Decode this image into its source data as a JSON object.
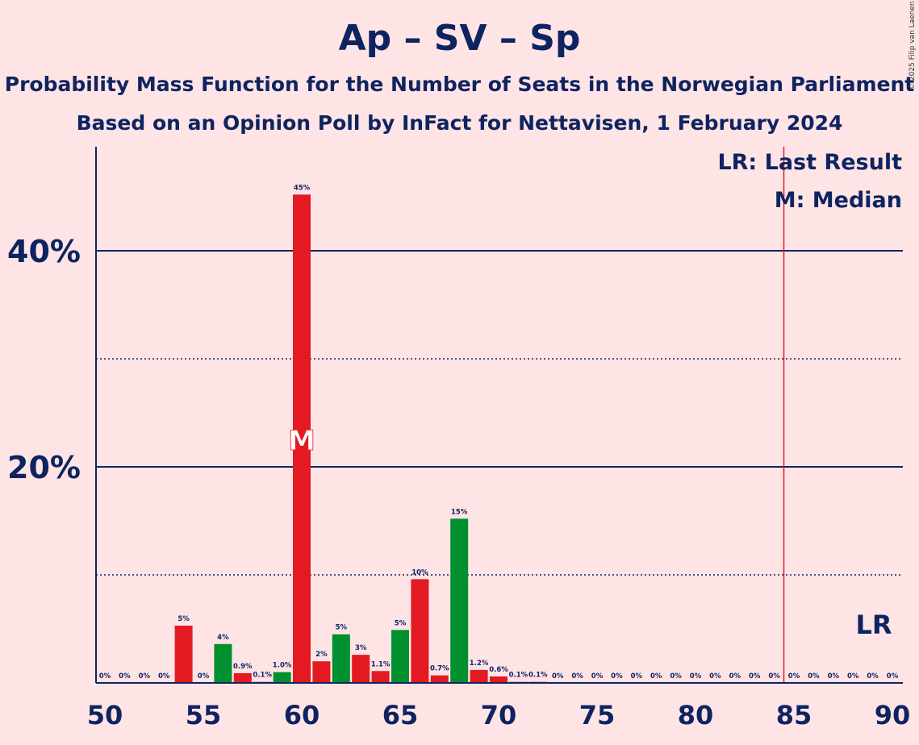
{
  "title": "Ap – SV – Sp",
  "subtitle_1": "Probability Mass Function for the Number of Seats in the Norwegian Parliament",
  "subtitle_2": "Based on an Opinion Poll by InFact for Nettavisen, 1 February 2024",
  "copyright": "© 2025 Filip van Laenen",
  "legend": {
    "last_result": "LR: Last Result",
    "median": "M: Median"
  },
  "colors": {
    "background": "#FFE4E6",
    "text": "#0E2460",
    "bar_red": "#E31A22",
    "bar_green": "#009030",
    "last_result_line": "#E31A22"
  },
  "chart_data": {
    "type": "bar",
    "xlim": [
      50,
      90
    ],
    "ylim": [
      0,
      50
    ],
    "x_ticks": [
      50,
      55,
      60,
      65,
      70,
      75,
      80,
      85,
      90
    ],
    "x_tick_labels": [
      "50",
      "55",
      "60",
      "65",
      "70",
      "75",
      "80",
      "85",
      "90"
    ],
    "y_major_ticks": [
      20,
      40
    ],
    "y_major_labels": [
      "20%",
      "40%"
    ],
    "y_minor_ticks": [
      10,
      30
    ],
    "median": 60,
    "median_label": "M",
    "last_result": 85,
    "last_result_label": "LR",
    "bars": [
      {
        "x": 50,
        "value": 0,
        "label": "0%",
        "color": "red"
      },
      {
        "x": 51,
        "value": 0,
        "label": "0%",
        "color": "red"
      },
      {
        "x": 52,
        "value": 0,
        "label": "0%",
        "color": "red"
      },
      {
        "x": 53,
        "value": 0,
        "label": "0%",
        "color": "red"
      },
      {
        "x": 54,
        "value": 5.3,
        "label": "5%",
        "color": "red"
      },
      {
        "x": 55,
        "value": 0,
        "label": "0%",
        "color": "red"
      },
      {
        "x": 56,
        "value": 3.6,
        "label": "4%",
        "color": "green"
      },
      {
        "x": 57,
        "value": 0.9,
        "label": "0.9%",
        "color": "red"
      },
      {
        "x": 58,
        "value": 0.1,
        "label": "0.1%",
        "color": "red"
      },
      {
        "x": 59,
        "value": 1.0,
        "label": "1.0%",
        "color": "green"
      },
      {
        "x": 60,
        "value": 45.2,
        "label": "45%",
        "color": "red"
      },
      {
        "x": 61,
        "value": 2.0,
        "label": "2%",
        "color": "red"
      },
      {
        "x": 62,
        "value": 4.5,
        "label": "5%",
        "color": "green"
      },
      {
        "x": 63,
        "value": 2.6,
        "label": "3%",
        "color": "red"
      },
      {
        "x": 64,
        "value": 1.1,
        "label": "1.1%",
        "color": "red"
      },
      {
        "x": 65,
        "value": 4.9,
        "label": "5%",
        "color": "green"
      },
      {
        "x": 66,
        "value": 9.6,
        "label": "10%",
        "color": "red"
      },
      {
        "x": 67,
        "value": 0.7,
        "label": "0.7%",
        "color": "red"
      },
      {
        "x": 68,
        "value": 15.2,
        "label": "15%",
        "color": "green"
      },
      {
        "x": 69,
        "value": 1.2,
        "label": "1.2%",
        "color": "red"
      },
      {
        "x": 70,
        "value": 0.6,
        "label": "0.6%",
        "color": "red"
      },
      {
        "x": 71,
        "value": 0.1,
        "label": "0.1%",
        "color": "red"
      },
      {
        "x": 72,
        "value": 0.1,
        "label": "0.1%",
        "color": "red"
      },
      {
        "x": 73,
        "value": 0,
        "label": "0%",
        "color": "red"
      },
      {
        "x": 74,
        "value": 0,
        "label": "0%",
        "color": "red"
      },
      {
        "x": 75,
        "value": 0,
        "label": "0%",
        "color": "red"
      },
      {
        "x": 76,
        "value": 0,
        "label": "0%",
        "color": "red"
      },
      {
        "x": 77,
        "value": 0,
        "label": "0%",
        "color": "red"
      },
      {
        "x": 78,
        "value": 0,
        "label": "0%",
        "color": "red"
      },
      {
        "x": 79,
        "value": 0,
        "label": "0%",
        "color": "red"
      },
      {
        "x": 80,
        "value": 0,
        "label": "0%",
        "color": "red"
      },
      {
        "x": 81,
        "value": 0,
        "label": "0%",
        "color": "red"
      },
      {
        "x": 82,
        "value": 0,
        "label": "0%",
        "color": "red"
      },
      {
        "x": 83,
        "value": 0,
        "label": "0%",
        "color": "red"
      },
      {
        "x": 84,
        "value": 0,
        "label": "0%",
        "color": "red"
      },
      {
        "x": 85,
        "value": 0,
        "label": "0%",
        "color": "red"
      },
      {
        "x": 86,
        "value": 0,
        "label": "0%",
        "color": "red"
      },
      {
        "x": 87,
        "value": 0,
        "label": "0%",
        "color": "red"
      },
      {
        "x": 88,
        "value": 0,
        "label": "0%",
        "color": "red"
      },
      {
        "x": 89,
        "value": 0,
        "label": "0%",
        "color": "red"
      },
      {
        "x": 90,
        "value": 0,
        "label": "0%",
        "color": "red"
      }
    ]
  }
}
